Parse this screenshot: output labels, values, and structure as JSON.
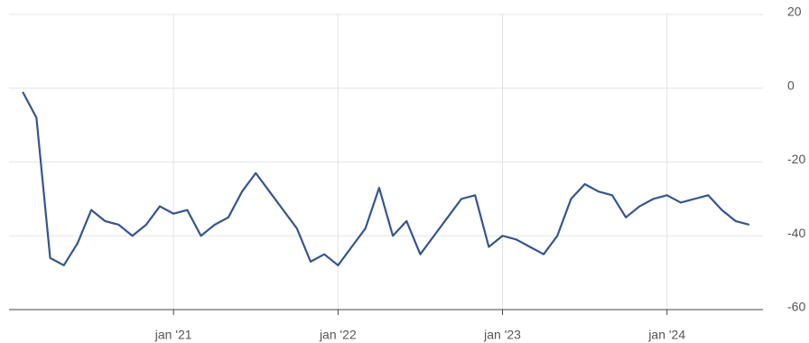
{
  "chart_data": {
    "type": "line",
    "x": [
      "2020-02",
      "2020-03",
      "2020-04",
      "2020-05",
      "2020-06",
      "2020-07",
      "2020-08",
      "2020-09",
      "2020-10",
      "2020-11",
      "2020-12",
      "2021-01",
      "2021-02",
      "2021-03",
      "2021-04",
      "2021-05",
      "2021-06",
      "2021-07",
      "2021-08",
      "2021-09",
      "2021-10",
      "2021-11",
      "2021-12",
      "2022-01",
      "2022-02",
      "2022-03",
      "2022-04",
      "2022-05",
      "2022-06",
      "2022-07",
      "2022-08",
      "2022-09",
      "2022-10",
      "2022-11",
      "2022-12",
      "2023-01",
      "2023-02",
      "2023-03",
      "2023-04",
      "2023-05",
      "2023-06",
      "2023-07",
      "2023-08",
      "2023-09",
      "2023-10",
      "2023-11",
      "2023-12",
      "2024-01",
      "2024-02",
      "2024-03",
      "2024-04",
      "2024-05",
      "2024-06",
      "2024-07"
    ],
    "series": [
      {
        "color": "#34558f",
        "values": [
          -1,
          -8,
          -46,
          -48,
          -42,
          -33,
          -36,
          -37,
          -40,
          -37,
          -32,
          -34,
          -33,
          -40,
          -37,
          -35,
          -28,
          -23,
          -28,
          -33,
          -38,
          -47,
          -45,
          -48,
          -43,
          -38,
          -27,
          -40,
          -36,
          -45,
          -40,
          -35,
          -30,
          -29,
          -43,
          -40,
          -41,
          -43,
          -45,
          -40,
          -30,
          -26,
          -28,
          -29,
          -35,
          -32,
          -30,
          -29,
          -31,
          -30,
          -29,
          -33,
          -36,
          -37
        ]
      }
    ],
    "xlim": [
      "2020-01",
      "2024-08"
    ],
    "xticks": [
      {
        "value": "2021-01",
        "label": "jan '21"
      },
      {
        "value": "2022-01",
        "label": "jan '22"
      },
      {
        "value": "2023-01",
        "label": "jan '23"
      },
      {
        "value": "2024-01",
        "label": "jan '24"
      }
    ],
    "ylim": [
      -60,
      20
    ],
    "yticks": [
      -60,
      -40,
      -20,
      0,
      20
    ],
    "grid": true
  }
}
